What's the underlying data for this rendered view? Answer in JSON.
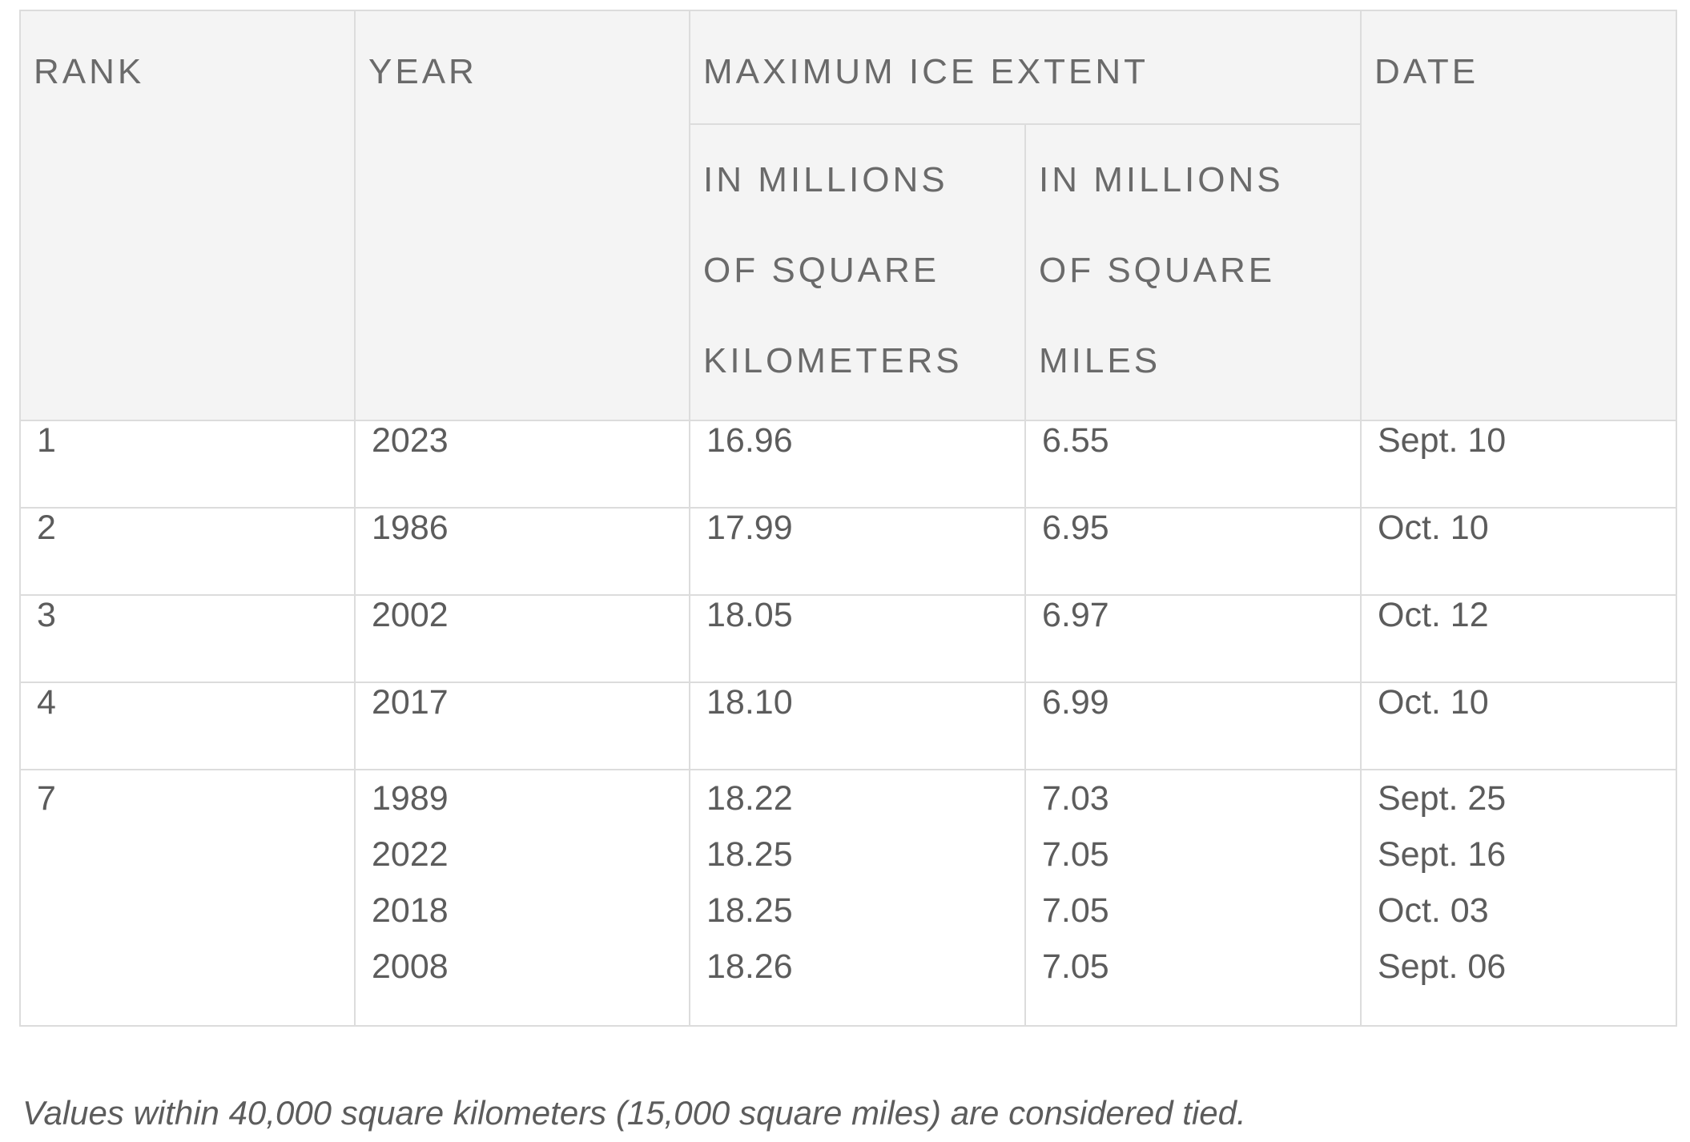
{
  "table": {
    "headers": {
      "rank": "RANK",
      "year": "YEAR",
      "extent": "MAXIMUM ICE EXTENT",
      "km": "IN MILLIONS OF SQUARE KILOMETERS",
      "mi": "IN MILLIONS OF SQUARE MILES",
      "date": "DATE"
    },
    "rows": [
      {
        "rank": "1",
        "year": "2023",
        "km": "16.96",
        "mi": "6.55",
        "date": "Sept. 10"
      },
      {
        "rank": "2",
        "year": "1986",
        "km": "17.99",
        "mi": "6.95",
        "date": "Oct. 10"
      },
      {
        "rank": "3",
        "year": "2002",
        "km": "18.05",
        "mi": "6.97",
        "date": "Oct. 12"
      },
      {
        "rank": "4",
        "year": "2017",
        "km": "18.10",
        "mi": "6.99",
        "date": "Oct. 10"
      }
    ],
    "tied_group": {
      "rank": "7",
      "entries": [
        {
          "year": "1989",
          "km": "18.22",
          "mi": "7.03",
          "date": "Sept. 25"
        },
        {
          "year": "2022",
          "km": "18.25",
          "mi": "7.05",
          "date": "Sept. 16"
        },
        {
          "year": "2018",
          "km": "18.25",
          "mi": "7.05",
          "date": "Oct. 03"
        },
        {
          "year": "2008",
          "km": "18.26",
          "mi": "7.05",
          "date": "Sept. 06"
        }
      ]
    }
  },
  "footnote": "Values within 40,000 square kilometers (15,000 square miles) are considered tied."
}
